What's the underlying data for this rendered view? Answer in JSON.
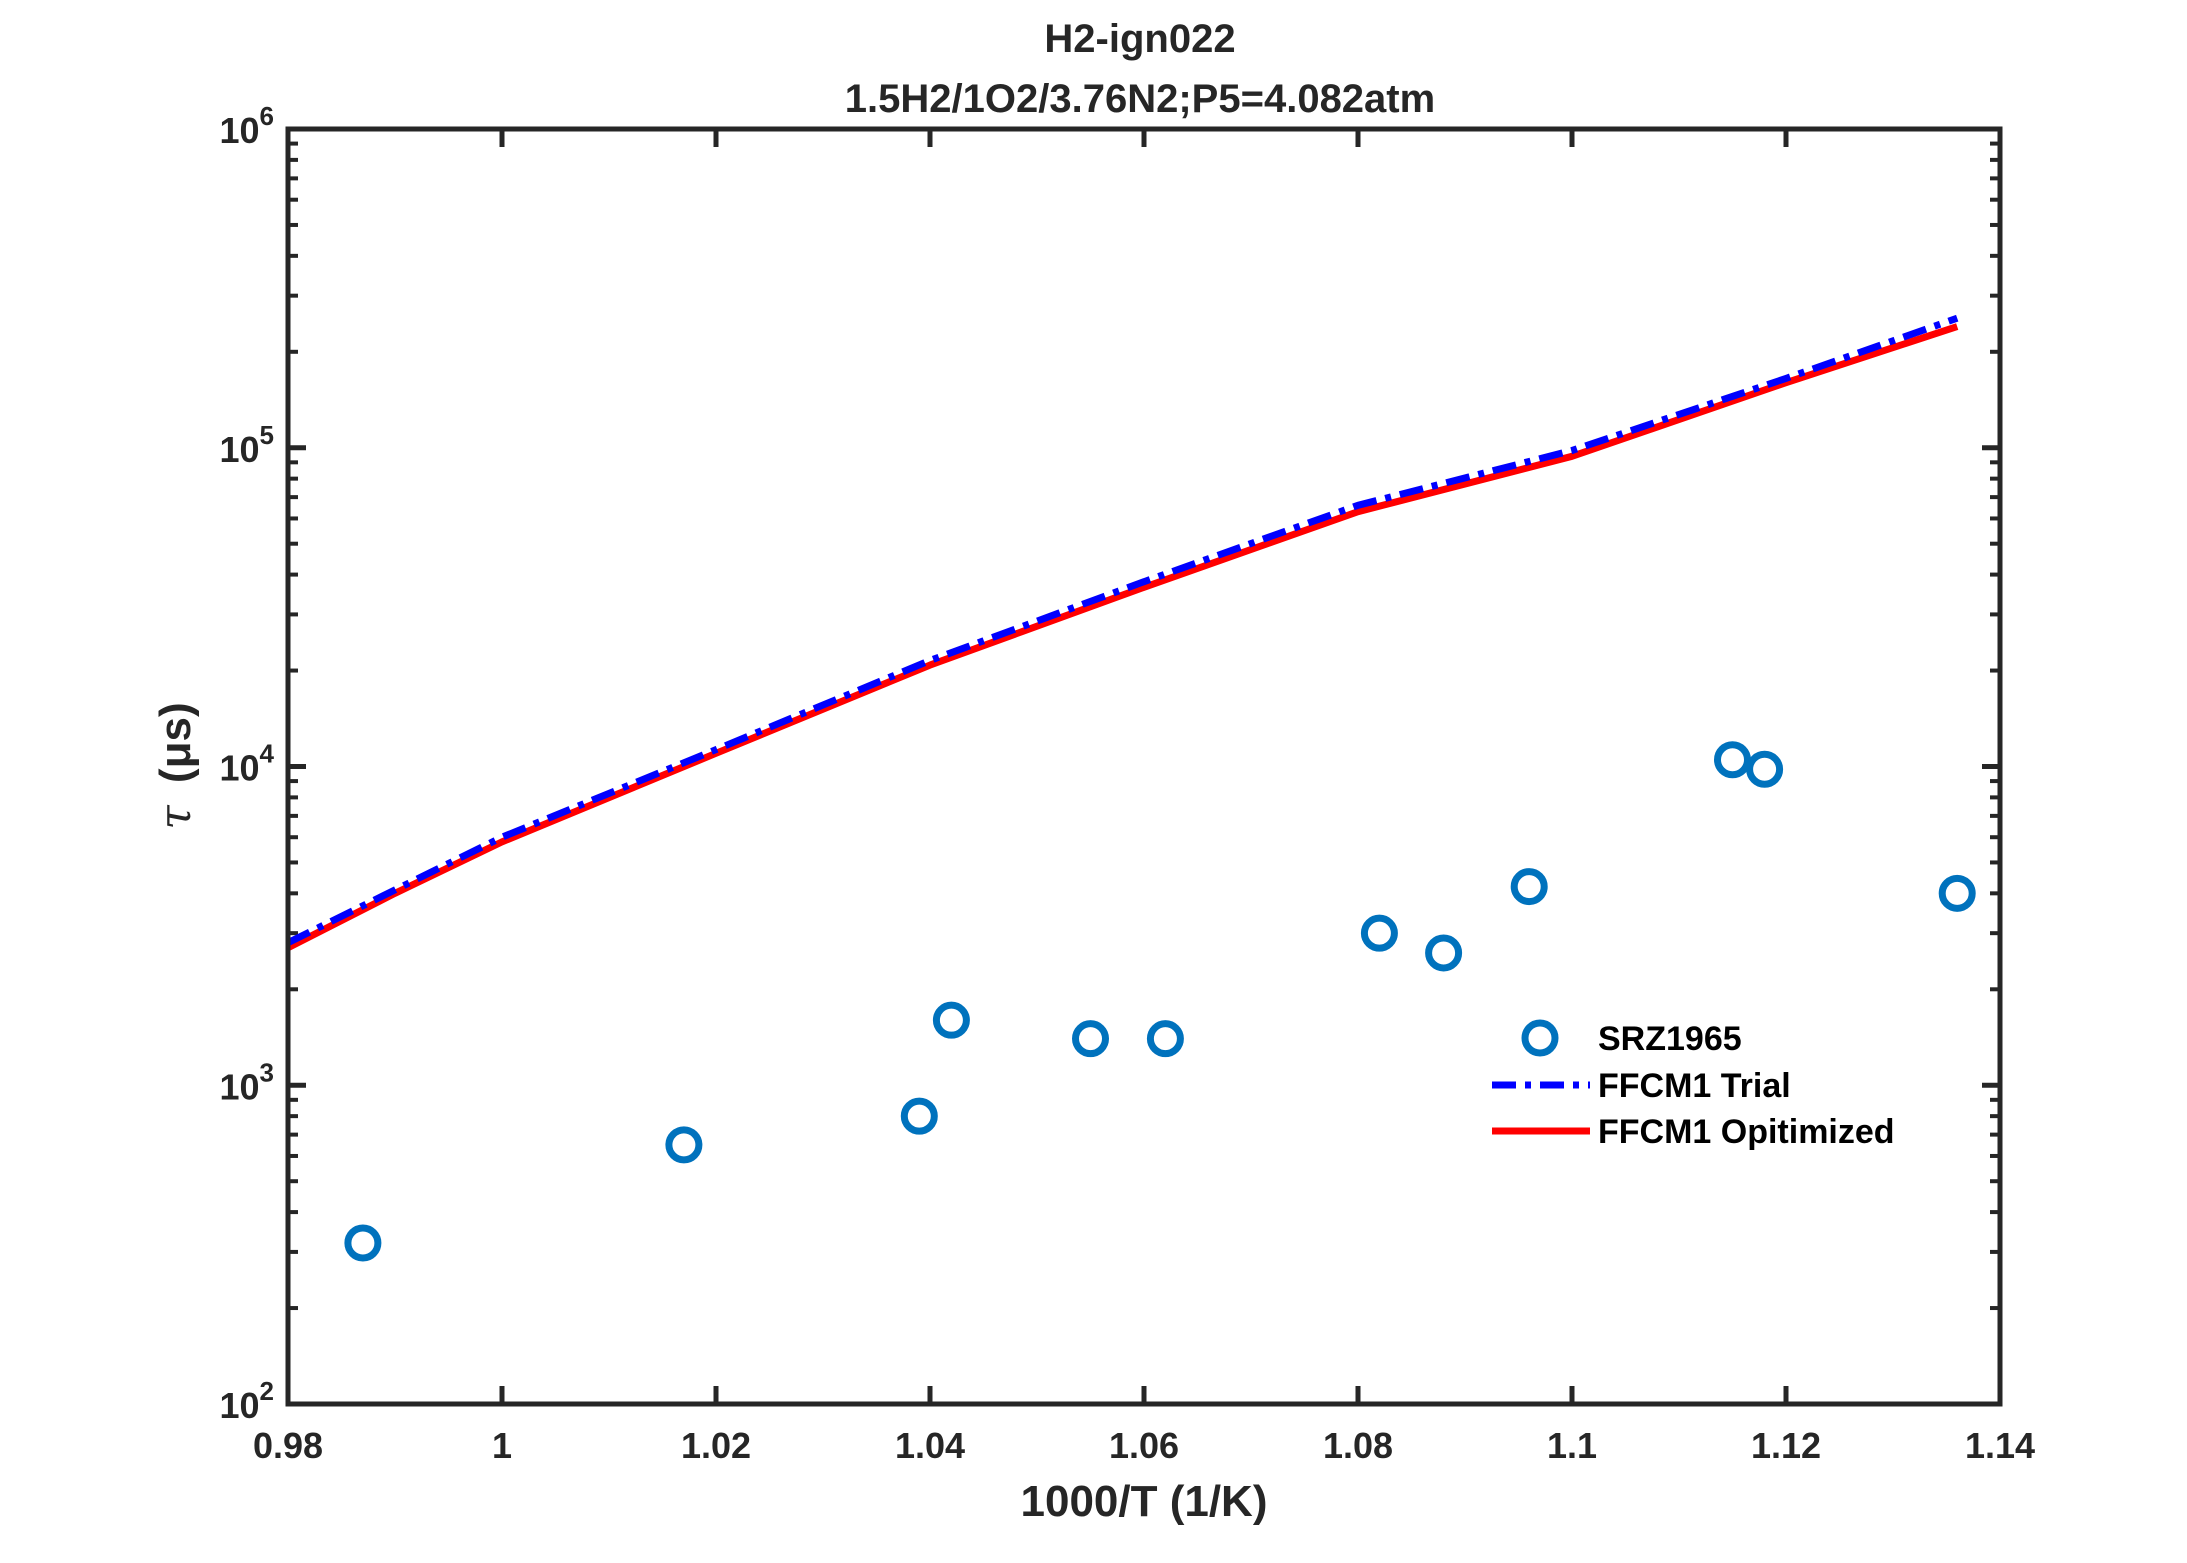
{
  "chart_data": {
    "type": "line",
    "title": [
      "H2-ign022",
      "1.5H2/1O2/3.76N2;P5=4.082atm"
    ],
    "xlabel": "1000/T (1/K)",
    "ylabel_symbol": "τ",
    "ylabel_unit": "(μs)",
    "xlim": [
      0.98,
      1.14
    ],
    "ylim": [
      100,
      1000000
    ],
    "yscale": "log",
    "x_ticks": [
      0.98,
      1.0,
      1.02,
      1.04,
      1.06,
      1.08,
      1.1,
      1.12,
      1.14
    ],
    "x_tick_labels": [
      "0.98",
      "1",
      "1.02",
      "1.04",
      "1.06",
      "1.08",
      "1.1",
      "1.12",
      "1.14"
    ],
    "y_ticks": [
      100,
      1000,
      10000,
      100000,
      1000000
    ],
    "y_tick_labels": [
      {
        "base": "10",
        "exp": "2"
      },
      {
        "base": "10",
        "exp": "3"
      },
      {
        "base": "10",
        "exp": "4"
      },
      {
        "base": "10",
        "exp": "5"
      },
      {
        "base": "10",
        "exp": "6"
      }
    ],
    "legend_position": "right",
    "series": [
      {
        "name": "SRZ1965",
        "style": "marker-circle",
        "color": "#0072BD",
        "x": [
          0.987,
          1.017,
          1.039,
          1.042,
          1.055,
          1.062,
          1.082,
          1.088,
          1.096,
          1.115,
          1.118,
          1.136
        ],
        "y": [
          320,
          650,
          800,
          1600,
          1400,
          1400,
          3000,
          2600,
          4200,
          10500,
          9800,
          4000
        ]
      },
      {
        "name": "FFCM1 Trial",
        "style": "dash-dot",
        "color": "#0000FF",
        "x": [
          0.98,
          0.99,
          1.0,
          1.02,
          1.04,
          1.06,
          1.08,
          1.1,
          1.12,
          1.136
        ],
        "y": [
          2800,
          4100,
          6000,
          11300,
          21500,
          38000,
          66000,
          98000,
          165000,
          255000
        ]
      },
      {
        "name": "FFCM1 Opitimized",
        "style": "solid",
        "color": "#FF0000",
        "x": [
          0.98,
          0.99,
          1.0,
          1.02,
          1.04,
          1.06,
          1.08,
          1.1,
          1.12,
          1.136
        ],
        "y": [
          2700,
          4000,
          5800,
          11000,
          20800,
          36500,
          63000,
          94000,
          160000,
          240000
        ]
      }
    ]
  }
}
